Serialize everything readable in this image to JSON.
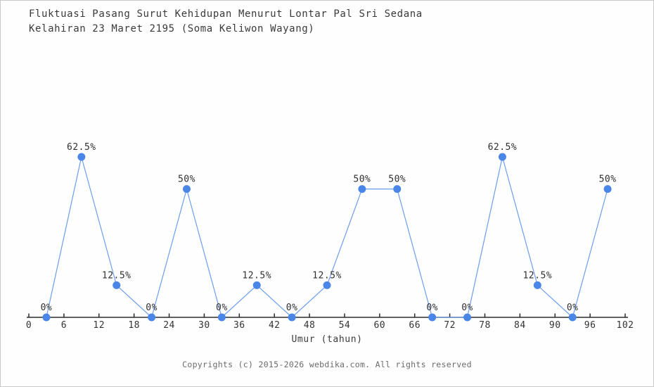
{
  "chart_data": {
    "type": "line",
    "title": "Fluktuasi Pasang Surut Kehidupan Menurut Lontar Pal Sri Sedana\nKelahiran 23 Maret 2195 (Soma Keliwon Wayang)",
    "xlabel": "Umur (tahun)",
    "ylabel": "",
    "x": [
      3,
      9,
      15,
      21,
      27,
      33,
      39,
      45,
      51,
      57,
      63,
      69,
      75,
      81,
      87,
      93,
      99
    ],
    "values": [
      0,
      62.5,
      12.5,
      0,
      50,
      0,
      12.5,
      0,
      12.5,
      50,
      50,
      0,
      0,
      62.5,
      12.5,
      0,
      50
    ],
    "point_labels": [
      "0%",
      "62.5%",
      "12.5%",
      "0%",
      "50%",
      "0%",
      "12.5%",
      "0%",
      "12.5%",
      "50%",
      "50%",
      "0%",
      "0%",
      "62.5%",
      "12.5%",
      "0%",
      "50%"
    ],
    "x_ticks": [
      0,
      6,
      12,
      18,
      24,
      30,
      36,
      42,
      48,
      54,
      60,
      66,
      72,
      78,
      84,
      90,
      96,
      102
    ],
    "xlim": [
      0,
      102
    ],
    "ylim": [
      0,
      70
    ],
    "grid": false,
    "legend": null,
    "colors": {
      "marker": "#4a86e8",
      "line": "#6c9ded",
      "axis": "#2b2b2b",
      "label": "#2f2f2f"
    }
  },
  "footer": {
    "copyright": "Copyrights (c) 2015-2026 webdika.com. All rights reserved"
  }
}
